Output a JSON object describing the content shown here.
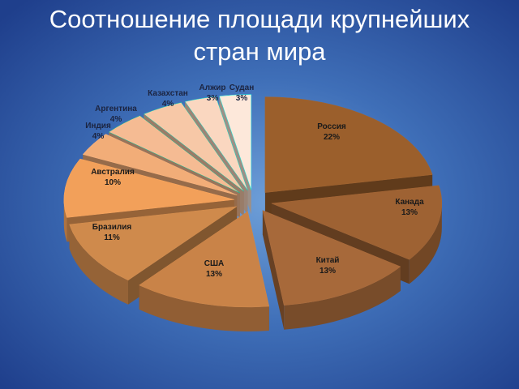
{
  "title": {
    "line1": "Соотношение площади крупнейших",
    "line2": "стран мира"
  },
  "chart_data": {
    "type": "pie",
    "title": "Соотношение площади крупнейших стран мира",
    "slices": [
      {
        "name": "Россия",
        "label": "22%",
        "value": 22,
        "color": "#9b5f2c"
      },
      {
        "name": "Канада",
        "label": "13%",
        "value": 13,
        "color": "#9e6233"
      },
      {
        "name": "Китай",
        "label": "13%",
        "value": 13,
        "color": "#a7693a"
      },
      {
        "name": "США",
        "label": "13%",
        "value": 13,
        "color": "#c98348"
      },
      {
        "name": "Бразилия",
        "label": "11%",
        "value": 11,
        "color": "#cf8a4c"
      },
      {
        "name": "Австралия",
        "label": "10%",
        "value": 10,
        "color": "#f2a05a"
      },
      {
        "name": "Индия",
        "label": "4%",
        "value": 4,
        "color": "#f2ad78"
      },
      {
        "name": "Аргентина",
        "label": "4%",
        "value": 4,
        "color": "#f5bb93"
      },
      {
        "name": "Казахстан",
        "label": "4%",
        "value": 4,
        "color": "#f7c8a7"
      },
      {
        "name": "Алжир",
        "label": "3%",
        "value": 3,
        "color": "#fad7c0"
      },
      {
        "name": "Судан",
        "label": "3%",
        "value": 3,
        "color": "#fde8da"
      }
    ],
    "legend": "none"
  }
}
